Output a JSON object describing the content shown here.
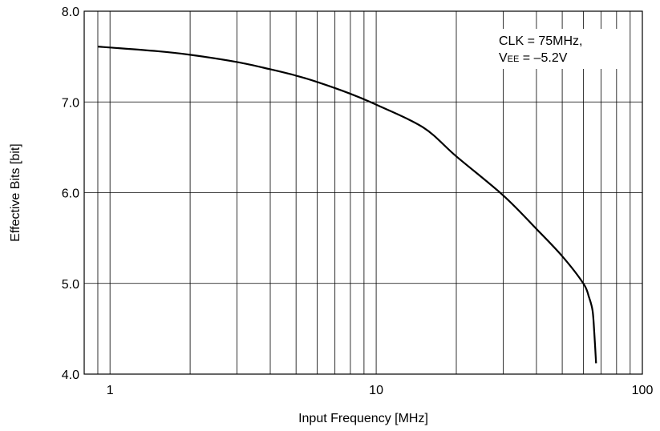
{
  "chart_data": {
    "type": "line",
    "xlabel": "Input Frequency [MHz]",
    "ylabel": "Effective Bits [bit]",
    "x_scale": "log",
    "xlim": [
      0.8,
      100
    ],
    "ylim": [
      4.0,
      8.0
    ],
    "x_ticks": [
      {
        "value": 1,
        "label": "1"
      },
      {
        "value": 10,
        "label": "10"
      },
      {
        "value": 100,
        "label": "100"
      }
    ],
    "y_ticks": [
      {
        "value": 4.0,
        "label": "4.0"
      },
      {
        "value": 5.0,
        "label": "5.0"
      },
      {
        "value": 6.0,
        "label": "6.0"
      },
      {
        "value": 7.0,
        "label": "7.0"
      },
      {
        "value": 8.0,
        "label": "8.0"
      }
    ],
    "grid": true,
    "series": [
      {
        "x": [
          0.9,
          1,
          1.5,
          2,
          3,
          4,
          5,
          6,
          8,
          10,
          15,
          20,
          30,
          40,
          50,
          60,
          63,
          65,
          66,
          67
        ],
        "y": [
          7.61,
          7.6,
          7.56,
          7.52,
          7.44,
          7.36,
          7.29,
          7.22,
          7.09,
          6.97,
          6.72,
          6.4,
          5.97,
          5.6,
          5.3,
          5.0,
          4.85,
          4.7,
          4.45,
          4.12
        ]
      }
    ],
    "annotation": {
      "line1": "CLK = 75MHz,",
      "line2_prefix": "V",
      "line2_sub": "EE",
      "line2_suffix": " = –5.2V"
    }
  }
}
